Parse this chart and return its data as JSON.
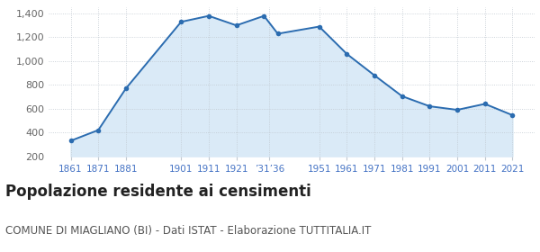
{
  "years": [
    1861,
    1871,
    1881,
    1901,
    1911,
    1921,
    1931,
    1936,
    1951,
    1961,
    1971,
    1981,
    1991,
    2001,
    2011,
    2021
  ],
  "values": [
    330,
    420,
    770,
    1330,
    1380,
    1300,
    1380,
    1230,
    1290,
    1060,
    880,
    705,
    620,
    590,
    640,
    545
  ],
  "yticks": [
    200,
    400,
    600,
    800,
    1000,
    1200,
    1400
  ],
  "ylim": [
    200,
    1450
  ],
  "xlim": [
    1853,
    2029
  ],
  "line_color": "#2B6CB0",
  "fill_color": "#DAEAF7",
  "marker_color": "#2B6CB0",
  "background_color": "#FFFFFF",
  "grid_color": "#C0C8D0",
  "title": "Popolazione residente ai censimenti",
  "subtitle": "COMUNE DI MIAGLIANO (BI) - Dati ISTAT - Elaborazione TUTTITALIA.IT",
  "title_fontsize": 12,
  "subtitle_fontsize": 8.5,
  "tick_label_color": "#4472C4",
  "ytick_label_color": "#666666",
  "tick_label_fontsize": 7.5,
  "ytick_label_fontsize": 8
}
